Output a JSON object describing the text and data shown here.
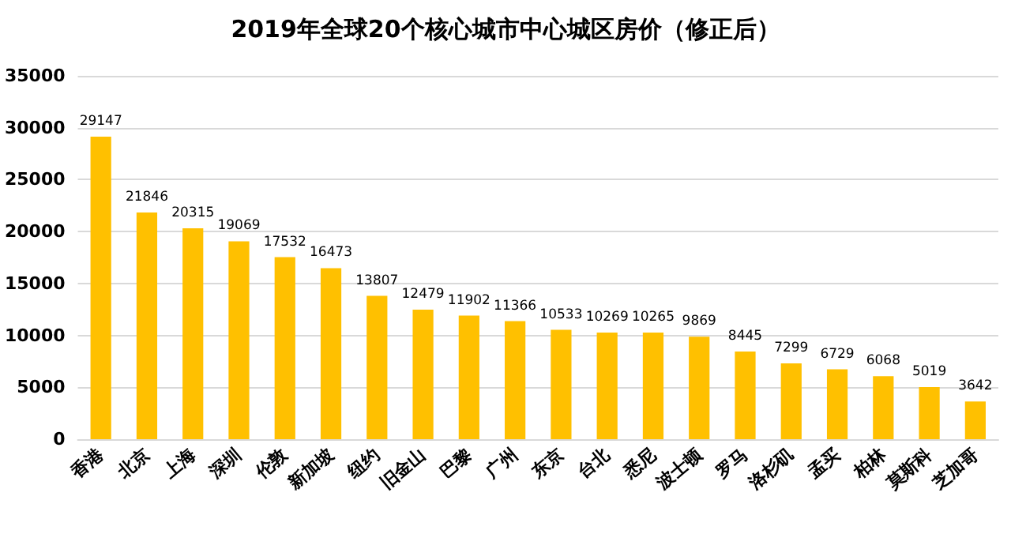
{
  "chart_data": {
    "type": "bar",
    "title": "2019年全球20个核心城市中心城区房价（修正后）",
    "categories": [
      "香港",
      "北京",
      "上海",
      "深圳",
      "伦敦",
      "新加坡",
      "纽约",
      "旧金山",
      "巴黎",
      "广州",
      "东京",
      "台北",
      "悉尼",
      "波士顿",
      "罗马",
      "洛杉矶",
      "孟买",
      "柏林",
      "莫斯科",
      "芝加哥"
    ],
    "values": [
      29147,
      21846,
      20315,
      19069,
      17532,
      16473,
      13807,
      12479,
      11902,
      11366,
      10533,
      10269,
      10265,
      9869,
      8445,
      7299,
      6729,
      6068,
      5019,
      3642
    ],
    "color": "#ffc000",
    "ylim": [
      0,
      35000
    ],
    "yticks": [
      0,
      5000,
      10000,
      15000,
      20000,
      25000,
      30000,
      35000
    ],
    "grid": "y",
    "data_labels": true
  }
}
